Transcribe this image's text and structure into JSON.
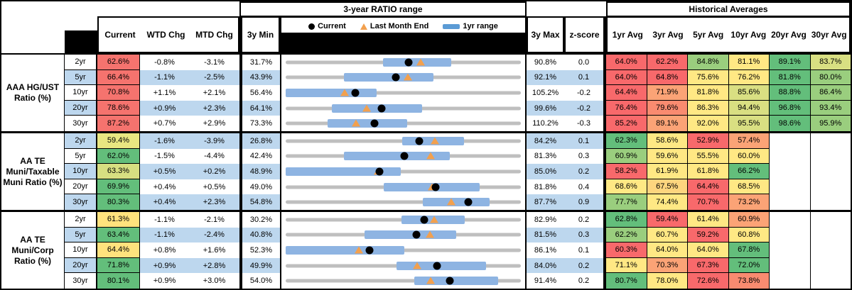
{
  "header": {
    "ratio_range_title": "3-year RATIO range",
    "historical_title": "Historical Averages",
    "col_current": "Current",
    "col_wtd": "WTD Chg",
    "col_mtd": "MTD Chg",
    "col_min": "3y Min",
    "col_max": "3y Max",
    "col_z": "z-score",
    "avg_cols": [
      "1yr Avg",
      "3yr Avg",
      "5yr Avg",
      "10yr Avg",
      "20yr Avg",
      "30yr Avg"
    ],
    "legend_current": "Current",
    "legend_last_month": "Last Month End",
    "legend_range": "1yr range"
  },
  "style_colors": {
    "band_blue": "#BDD7EE",
    "bar_blue": "#8EB4E2",
    "track_gray": "#BFBFBF",
    "triangle_orange": "#F2A04E",
    "legend_bar_blue": "#5B9BD5"
  },
  "chart_data": {
    "type": "table",
    "title": "3-year RATIO range with Historical Averages",
    "series_legend": [
      "Current (black dot)",
      "Last Month End (orange triangle)",
      "1yr range (blue bar)"
    ],
    "x_axis_per_row": "ratio % scaled from 3y Min to 3y Max",
    "groups": [
      {
        "label": "AAA HG/UST Ratio (%)",
        "rows": [
          {
            "tenor": "2yr",
            "current": "62.6%",
            "current_bg": "#F5736E",
            "wtd": "-0.8%",
            "mtd": "-3.1%",
            "min3y": "31.7%",
            "max3y": "90.8%",
            "range1y": [
              56.2,
              73.3
            ],
            "last_month_end": 65.7,
            "zscore": "0.0",
            "avgs": [
              {
                "v": "64.0%",
                "bg": "#F8696B"
              },
              {
                "v": "62.2%",
                "bg": "#F8696B"
              },
              {
                "v": "84.8%",
                "bg": "#9ACE7E"
              },
              {
                "v": "81.1%",
                "bg": "#FFE884"
              },
              {
                "v": "89.1%",
                "bg": "#63BE7B"
              },
              {
                "v": "83.7%",
                "bg": "#D9DF82"
              }
            ]
          },
          {
            "tenor": "5yr",
            "current": "66.4%",
            "current_bg": "#F5736E",
            "wtd": "-1.1%",
            "mtd": "-2.5%",
            "min3y": "43.9%",
            "max3y": "92.1%",
            "range1y": [
              55.9,
              74.2
            ],
            "last_month_end": 68.9,
            "zscore": "0.1",
            "avgs": [
              {
                "v": "64.0%",
                "bg": "#F8696B"
              },
              {
                "v": "64.8%",
                "bg": "#F8696B"
              },
              {
                "v": "75.6%",
                "bg": "#FFE884"
              },
              {
                "v": "76.2%",
                "bg": "#FFE884"
              },
              {
                "v": "81.8%",
                "bg": "#63BE7B"
              },
              {
                "v": "80.0%",
                "bg": "#9ACE7E"
              }
            ]
          },
          {
            "tenor": "10yr",
            "current": "70.8%",
            "current_bg": "#F5736E",
            "wtd": "+1.1%",
            "mtd": "+2.1%",
            "min3y": "56.4%",
            "max3y": "105.2%",
            "range1y": [
              56.4,
              75.3
            ],
            "last_month_end": 68.7,
            "zscore": "-0.2",
            "avgs": [
              {
                "v": "64.4%",
                "bg": "#F8696B"
              },
              {
                "v": "71.9%",
                "bg": "#FBA376"
              },
              {
                "v": "81.8%",
                "bg": "#FFE884"
              },
              {
                "v": "85.6%",
                "bg": "#D9DF82"
              },
              {
                "v": "88.8%",
                "bg": "#63BE7B"
              },
              {
                "v": "86.4%",
                "bg": "#9ACE7E"
              }
            ]
          },
          {
            "tenor": "20yr",
            "current": "78.6%",
            "current_bg": "#F5736E",
            "wtd": "+0.9%",
            "mtd": "+2.3%",
            "min3y": "64.1%",
            "max3y": "99.6%",
            "range1y": [
              71.1,
              84.7
            ],
            "last_month_end": 76.3,
            "zscore": "-0.2",
            "avgs": [
              {
                "v": "76.4%",
                "bg": "#F8696B"
              },
              {
                "v": "79.6%",
                "bg": "#F98B70"
              },
              {
                "v": "86.3%",
                "bg": "#FFE884"
              },
              {
                "v": "94.4%",
                "bg": "#D9DF82"
              },
              {
                "v": "96.8%",
                "bg": "#63BE7B"
              },
              {
                "v": "93.4%",
                "bg": "#9ACE7E"
              }
            ]
          },
          {
            "tenor": "30yr",
            "current": "87.2%",
            "current_bg": "#F5736E",
            "wtd": "+0.7%",
            "mtd": "+2.9%",
            "min3y": "73.3%",
            "max3y": "110.2%",
            "range1y": [
              79.9,
              92.4
            ],
            "last_month_end": 84.3,
            "zscore": "-0.3",
            "avgs": [
              {
                "v": "85.2%",
                "bg": "#F8696B"
              },
              {
                "v": "89.1%",
                "bg": "#FBA376"
              },
              {
                "v": "92.0%",
                "bg": "#FFE884"
              },
              {
                "v": "95.5%",
                "bg": "#D9DF82"
              },
              {
                "v": "98.6%",
                "bg": "#63BE7B"
              },
              {
                "v": "95.9%",
                "bg": "#9ACE7E"
              }
            ]
          }
        ]
      },
      {
        "label": "AA TE Muni/Taxable Muni Ratio (%)",
        "rows": [
          {
            "tenor": "2yr",
            "current": "59.4%",
            "current_bg": "#E9E681",
            "wtd": "-1.6%",
            "mtd": "-3.9%",
            "min3y": "26.8%",
            "max3y": "84.2%",
            "range1y": [
              55.2,
              70.3
            ],
            "last_month_end": 63.3,
            "zscore": "0.1",
            "avgs": [
              {
                "v": "62.3%",
                "bg": "#63BE7B"
              },
              {
                "v": "58.6%",
                "bg": "#FFE884"
              },
              {
                "v": "52.9%",
                "bg": "#F8696B"
              },
              {
                "v": "57.4%",
                "bg": "#FBA376"
              },
              {
                "v": "",
                "bg": ""
              },
              {
                "v": "",
                "bg": ""
              }
            ]
          },
          {
            "tenor": "5yr",
            "current": "62.0%",
            "current_bg": "#63BE7B",
            "wtd": "-1.5%",
            "mtd": "-4.4%",
            "min3y": "42.4%",
            "max3y": "81.3%",
            "range1y": [
              52.0,
              69.6
            ],
            "last_month_end": 66.4,
            "zscore": "0.3",
            "avgs": [
              {
                "v": "60.9%",
                "bg": "#9ACE7E"
              },
              {
                "v": "59.6%",
                "bg": "#FFE884"
              },
              {
                "v": "55.5%",
                "bg": "#FFE884"
              },
              {
                "v": "60.0%",
                "bg": "#FFE884"
              },
              {
                "v": "",
                "bg": ""
              },
              {
                "v": "",
                "bg": ""
              }
            ]
          },
          {
            "tenor": "10yr",
            "current": "63.3%",
            "current_bg": "#D7DF81",
            "wtd": "+0.5%",
            "mtd": "+0.2%",
            "min3y": "48.9%",
            "max3y": "85.0%",
            "range1y": [
              48.9,
              66.6
            ],
            "last_month_end": 63.1,
            "zscore": "0.2",
            "avgs": [
              {
                "v": "58.2%",
                "bg": "#F8696B"
              },
              {
                "v": "61.9%",
                "bg": "#FFE884"
              },
              {
                "v": "61.8%",
                "bg": "#FFE884"
              },
              {
                "v": "66.2%",
                "bg": "#63BE7B"
              },
              {
                "v": "",
                "bg": ""
              },
              {
                "v": "",
                "bg": ""
              }
            ]
          },
          {
            "tenor": "20yr",
            "current": "69.9%",
            "current_bg": "#63BE7B",
            "wtd": "+0.4%",
            "mtd": "+0.5%",
            "min3y": "49.0%",
            "max3y": "81.8%",
            "range1y": [
              62.7,
              76.1
            ],
            "last_month_end": 69.4,
            "zscore": "0.4",
            "avgs": [
              {
                "v": "68.6%",
                "bg": "#FFE884"
              },
              {
                "v": "67.5%",
                "bg": "#FDD57E"
              },
              {
                "v": "64.4%",
                "bg": "#F8696B"
              },
              {
                "v": "68.5%",
                "bg": "#FFE884"
              },
              {
                "v": "",
                "bg": ""
              },
              {
                "v": "",
                "bg": ""
              }
            ]
          },
          {
            "tenor": "30yr",
            "current": "80.3%",
            "current_bg": "#63BE7B",
            "wtd": "+0.4%",
            "mtd": "+2.3%",
            "min3y": "54.8%",
            "max3y": "87.7%",
            "range1y": [
              74.0,
              83.3
            ],
            "last_month_end": 78.0,
            "zscore": "0.9",
            "avgs": [
              {
                "v": "77.7%",
                "bg": "#9ACE7E"
              },
              {
                "v": "74.4%",
                "bg": "#FFE884"
              },
              {
                "v": "70.7%",
                "bg": "#F8696B"
              },
              {
                "v": "73.2%",
                "bg": "#FBA376"
              },
              {
                "v": "",
                "bg": ""
              },
              {
                "v": "",
                "bg": ""
              }
            ]
          }
        ]
      },
      {
        "label": "AA TE Muni/Corp Ratio (%)",
        "rows": [
          {
            "tenor": "2yr",
            "current": "61.3%",
            "current_bg": "#FFE27D",
            "wtd": "-1.1%",
            "mtd": "-2.1%",
            "min3y": "30.2%",
            "max3y": "82.9%",
            "range1y": [
              56.1,
              70.3
            ],
            "last_month_end": 63.4,
            "zscore": "0.2",
            "avgs": [
              {
                "v": "62.8%",
                "bg": "#63BE7B"
              },
              {
                "v": "59.4%",
                "bg": "#F8696B"
              },
              {
                "v": "61.4%",
                "bg": "#FFE884"
              },
              {
                "v": "60.9%",
                "bg": "#FBA376"
              },
              {
                "v": "",
                "bg": ""
              },
              {
                "v": "",
                "bg": ""
              }
            ]
          },
          {
            "tenor": "5yr",
            "current": "63.4%",
            "current_bg": "#63BE7B",
            "wtd": "-1.1%",
            "mtd": "-2.4%",
            "min3y": "40.8%",
            "max3y": "81.5%",
            "range1y": [
              54.4,
              70.3
            ],
            "last_month_end": 65.8,
            "zscore": "0.3",
            "avgs": [
              {
                "v": "62.2%",
                "bg": "#9ACE7E"
              },
              {
                "v": "60.7%",
                "bg": "#FFE884"
              },
              {
                "v": "59.2%",
                "bg": "#F8696B"
              },
              {
                "v": "60.8%",
                "bg": "#FFE884"
              },
              {
                "v": "",
                "bg": ""
              },
              {
                "v": "",
                "bg": ""
              }
            ]
          },
          {
            "tenor": "10yr",
            "current": "64.4%",
            "current_bg": "#FFE27D",
            "wtd": "+0.8%",
            "mtd": "+1.6%",
            "min3y": "52.3%",
            "max3y": "86.1%",
            "range1y": [
              52.3,
              69.4
            ],
            "last_month_end": 62.8,
            "zscore": "0.1",
            "avgs": [
              {
                "v": "60.3%",
                "bg": "#F8696B"
              },
              {
                "v": "64.0%",
                "bg": "#FFE884"
              },
              {
                "v": "64.0%",
                "bg": "#FFE884"
              },
              {
                "v": "67.8%",
                "bg": "#63BE7B"
              },
              {
                "v": "",
                "bg": ""
              },
              {
                "v": "",
                "bg": ""
              }
            ]
          },
          {
            "tenor": "20yr",
            "current": "71.8%",
            "current_bg": "#63BE7B",
            "wtd": "+0.9%",
            "mtd": "+2.8%",
            "min3y": "49.9%",
            "max3y": "84.0%",
            "range1y": [
              66.0,
              79.0
            ],
            "last_month_end": 69.0,
            "zscore": "0.2",
            "avgs": [
              {
                "v": "71.1%",
                "bg": "#FFE884"
              },
              {
                "v": "70.3%",
                "bg": "#FBA376"
              },
              {
                "v": "67.3%",
                "bg": "#F8696B"
              },
              {
                "v": "72.0%",
                "bg": "#63BE7B"
              },
              {
                "v": "",
                "bg": ""
              },
              {
                "v": "",
                "bg": ""
              }
            ]
          },
          {
            "tenor": "30yr",
            "current": "80.1%",
            "current_bg": "#63BE7B",
            "wtd": "+0.9%",
            "mtd": "+3.0%",
            "min3y": "54.0%",
            "max3y": "91.4%",
            "range1y": [
              74.5,
              87.8
            ],
            "last_month_end": 77.1,
            "zscore": "0.2",
            "avgs": [
              {
                "v": "80.7%",
                "bg": "#63BE7B"
              },
              {
                "v": "78.0%",
                "bg": "#FFE884"
              },
              {
                "v": "72.6%",
                "bg": "#F8696B"
              },
              {
                "v": "73.8%",
                "bg": "#F98B70"
              },
              {
                "v": "",
                "bg": ""
              },
              {
                "v": "",
                "bg": ""
              }
            ]
          }
        ]
      }
    ]
  }
}
